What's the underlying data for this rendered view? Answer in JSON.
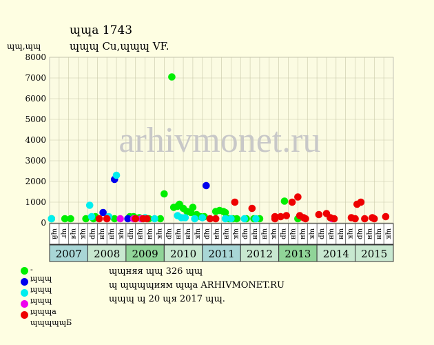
{
  "header": {
    "title_line1": "ɰɰa 1743",
    "title_line2": "ɰɰɰ Cu,ɰɰɰ VF.",
    "y_unit": "ɰɰ,ɰɰ"
  },
  "watermark": "arhivmonet.ru",
  "legend": [
    {
      "label": "- ɰɰɰ",
      "color": "#00ee00"
    },
    {
      "label": "- ɰɰɰ",
      "color": "#0000ee"
    },
    {
      "label": "- ɰɰɰ",
      "color": "#00eeee"
    },
    {
      "label": "- ɰɰɰa",
      "color": "#ee00ee"
    },
    {
      "label": "- ɰɰɰɰɰБ",
      "color": "#ee0000"
    }
  ],
  "notes": [
    "ɰɰняя ɰɰ 326 ɰɰ",
    "ɰ ɰɰɰɰиям ɰɰa ARHIVMONET.RU",
    "ɰɰɰ ɰ 20 ɰя 2017 ɰɰ."
  ],
  "chart_data": {
    "type": "scatter",
    "ylim": [
      0,
      8000
    ],
    "yticks": [
      0,
      1000,
      2000,
      3000,
      4000,
      5000,
      6000,
      7000,
      8000
    ],
    "month_labels": [
      "ɰй",
      "ɰг",
      "ɰя",
      "ɰк",
      "ɰр",
      "ɰн",
      "ɰн",
      "ɰк",
      "ɰр",
      "ɰн",
      "ɰн",
      "ɰк",
      "ɰр",
      "ɰн",
      "ɰн",
      "ɰк",
      "ɰр",
      "ɰн",
      "ɰн",
      "ɰк",
      "ɰр",
      "ɰн",
      "ɰн",
      "ɰк",
      "ɰр",
      "ɰн",
      "ɰн",
      "ɰк",
      "ɰр",
      "ɰн",
      "ɰн",
      "ɰк",
      "ɰр",
      "ɰн",
      "ɰн",
      "ɰк"
    ],
    "years": [
      {
        "label": "2007",
        "color": "#a8d6d6"
      },
      {
        "label": "2008",
        "color": "#c8e8d0"
      },
      {
        "label": "2009",
        "color": "#90d498"
      },
      {
        "label": "2010",
        "color": "#c8e8d0"
      },
      {
        "label": "2011",
        "color": "#a8d6d6"
      },
      {
        "label": "2012",
        "color": "#c8e8d0"
      },
      {
        "label": "2013",
        "color": "#90d498"
      },
      {
        "label": "2014",
        "color": "#c8e8d0"
      },
      {
        "label": "2015",
        "color": "#c8e8d0"
      }
    ],
    "series": [
      {
        "name": "ɰɰɰ",
        "color": "#00ee00",
        "points": [
          [
            2007.05,
            200
          ],
          [
            2007.4,
            200
          ],
          [
            2007.55,
            200
          ],
          [
            2007.95,
            200
          ],
          [
            2008.15,
            200
          ],
          [
            2008.2,
            300
          ],
          [
            2008.7,
            200
          ],
          [
            2009.1,
            300
          ],
          [
            2009.2,
            300
          ],
          [
            2009.35,
            250
          ],
          [
            2009.6,
            200
          ],
          [
            2009.9,
            200
          ],
          [
            2010.0,
            1400
          ],
          [
            2010.2,
            7050
          ],
          [
            2010.25,
            750
          ],
          [
            2010.35,
            800
          ],
          [
            2010.4,
            900
          ],
          [
            2010.5,
            700
          ],
          [
            2010.6,
            550
          ],
          [
            2010.7,
            500
          ],
          [
            2010.75,
            750
          ],
          [
            2010.85,
            400
          ],
          [
            2010.95,
            300
          ],
          [
            2011.05,
            300
          ],
          [
            2011.35,
            550
          ],
          [
            2011.45,
            600
          ],
          [
            2011.55,
            550
          ],
          [
            2011.6,
            500
          ],
          [
            2011.7,
            200
          ],
          [
            2011.8,
            200
          ],
          [
            2011.9,
            200
          ],
          [
            2012.15,
            200
          ],
          [
            2012.35,
            200
          ],
          [
            2012.5,
            200
          ],
          [
            2013.15,
            1050
          ],
          [
            2013.5,
            200
          ]
        ]
      },
      {
        "name": "ɰɰɰ",
        "color": "#0000ee",
        "points": [
          [
            2008.4,
            500
          ],
          [
            2008.7,
            2100
          ],
          [
            2009.05,
            200
          ],
          [
            2011.1,
            1800
          ]
        ]
      },
      {
        "name": "ɰɰɰ",
        "color": "#00eeee",
        "points": [
          [
            2007.05,
            200
          ],
          [
            2008.05,
            850
          ],
          [
            2008.1,
            300
          ],
          [
            2008.55,
            300
          ],
          [
            2008.75,
            2300
          ],
          [
            2009.5,
            250
          ],
          [
            2009.75,
            200
          ],
          [
            2010.35,
            350
          ],
          [
            2010.45,
            250
          ],
          [
            2010.55,
            250
          ],
          [
            2010.8,
            200
          ],
          [
            2011.0,
            250
          ],
          [
            2011.6,
            200
          ],
          [
            2011.75,
            200
          ],
          [
            2012.1,
            200
          ],
          [
            2012.4,
            200
          ]
        ]
      },
      {
        "name": "ɰɰɰa",
        "color": "#ee00ee",
        "points": [
          [
            2008.5,
            200
          ],
          [
            2008.85,
            200
          ],
          [
            2009.2,
            200
          ],
          [
            2009.4,
            200
          ],
          [
            2014.4,
            200
          ]
        ]
      },
      {
        "name": "ɰɰɰɰɰБ",
        "color": "#ee0000",
        "points": [
          [
            2008.3,
            200
          ],
          [
            2008.5,
            200
          ],
          [
            2009.25,
            200
          ],
          [
            2009.45,
            200
          ],
          [
            2009.55,
            200
          ],
          [
            2011.2,
            200
          ],
          [
            2011.35,
            200
          ],
          [
            2011.85,
            1000
          ],
          [
            2012.3,
            700
          ],
          [
            2012.9,
            300
          ],
          [
            2012.9,
            200
          ],
          [
            2013.05,
            300
          ],
          [
            2013.2,
            350
          ],
          [
            2013.35,
            1000
          ],
          [
            2013.5,
            1250
          ],
          [
            2013.55,
            350
          ],
          [
            2013.65,
            250
          ],
          [
            2013.7,
            200
          ],
          [
            2014.05,
            400
          ],
          [
            2014.25,
            450
          ],
          [
            2014.35,
            250
          ],
          [
            2014.45,
            200
          ],
          [
            2014.9,
            250
          ],
          [
            2015.0,
            200
          ],
          [
            2015.05,
            900
          ],
          [
            2015.15,
            1000
          ],
          [
            2015.25,
            200
          ],
          [
            2015.45,
            250
          ],
          [
            2015.5,
            200
          ],
          [
            2015.8,
            300
          ]
        ]
      }
    ]
  }
}
